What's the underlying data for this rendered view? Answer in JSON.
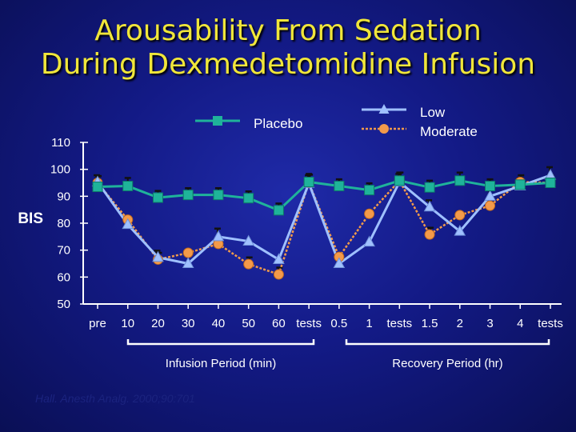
{
  "title_line1": "Arousability From Sedation",
  "title_line2": "During Dexmedetomidine Infusion",
  "citation": "Hall. Anesth Analg. 2000;90:701",
  "chart_data": {
    "type": "line",
    "ylabel": "BIS",
    "ylim": [
      50,
      110
    ],
    "yticks": [
      50,
      60,
      70,
      80,
      90,
      100,
      110
    ],
    "categories": [
      "pre",
      "10",
      "20",
      "30",
      "40",
      "50",
      "60",
      "tests",
      "0.5",
      "1",
      "tests",
      "1.5",
      "2",
      "3",
      "4",
      "tests"
    ],
    "groups": [
      {
        "label": "Infusion Period (min)",
        "from": 0,
        "to": 7
      },
      {
        "label": "Recovery Period (hr)",
        "from": 8,
        "to": 15
      }
    ],
    "legend": [
      {
        "label": "Placebo",
        "series": "placebo"
      },
      {
        "label": "Low",
        "series": "low"
      },
      {
        "label": "Moderate",
        "series": "moderate"
      }
    ],
    "colors": {
      "placebo": "#1fb39a",
      "low": "#9fc0ff",
      "moderate": "#f39a4a",
      "errorbar": "#111111"
    },
    "series": [
      {
        "key": "placebo",
        "values": [
          93.5,
          93.8,
          89.5,
          90.5,
          90.5,
          89.3,
          84.8,
          95.3,
          93.8,
          92.3,
          95.8,
          93.3,
          95.8,
          93.8,
          94.3,
          95.0
        ],
        "err": [
          3,
          3,
          2.5,
          2.5,
          2.5,
          2.5,
          2.5,
          3,
          2.5,
          2.5,
          3,
          2.5,
          3,
          2.5,
          2.5,
          3
        ]
      },
      {
        "key": "low",
        "values": [
          95.3,
          79.5,
          67.3,
          65.0,
          75.0,
          73.3,
          66.5,
          94.8,
          65.0,
          73.0,
          95.3,
          86.0,
          77.0,
          90.0,
          93.8,
          97.8
        ],
        "err": [
          2.5,
          0,
          2.5,
          0,
          3,
          0,
          0,
          3,
          0,
          0,
          3,
          2.5,
          0,
          3,
          2.5,
          3
        ]
      },
      {
        "key": "moderate",
        "values": [
          95.0,
          81.3,
          66.5,
          69.0,
          72.3,
          64.8,
          61.0,
          95.0,
          67.5,
          83.5,
          95.8,
          75.8,
          83.0,
          86.5,
          95.3,
          95.0
        ],
        "err": [
          2.5,
          0,
          2.5,
          0,
          2.5,
          2.5,
          2.5,
          3,
          0,
          0,
          3,
          2.5,
          0,
          3,
          2.5,
          2.5
        ]
      }
    ]
  }
}
